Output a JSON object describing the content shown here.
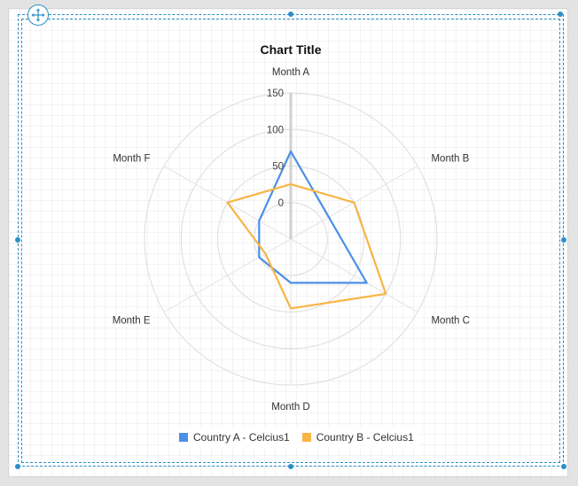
{
  "chart_data": {
    "type": "radar",
    "title": "Chart Title",
    "categories": [
      "Month A",
      "Month B",
      "Month C",
      "Month D",
      "Month E",
      "Month F"
    ],
    "radial_ticks": [
      0,
      50,
      100,
      150
    ],
    "rlim": [
      -50,
      150
    ],
    "grid": true,
    "legend_position": "bottom",
    "series": [
      {
        "name": "Country A - Celcius1",
        "color": "#4a8fe7",
        "values": [
          70,
          10,
          70,
          10,
          0,
          0
        ]
      },
      {
        "name": "Country B - Celcius1",
        "color": "#f7b544",
        "values": [
          25,
          50,
          100,
          45,
          -10,
          50
        ]
      }
    ]
  }
}
